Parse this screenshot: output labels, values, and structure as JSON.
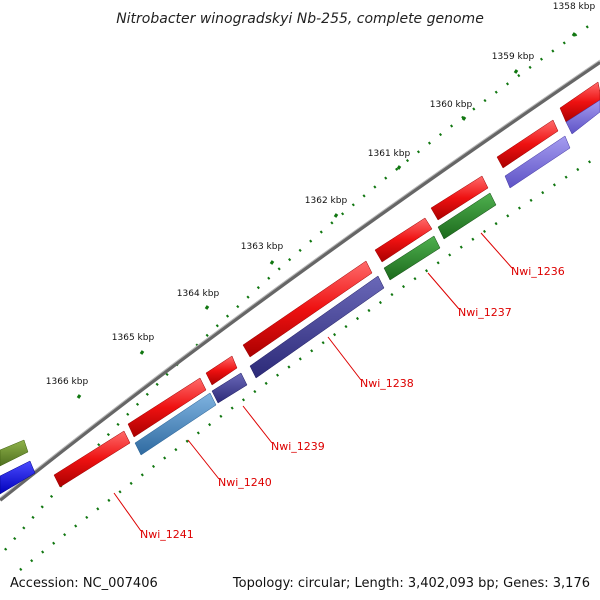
{
  "title": "Nitrobacter winogradskyi Nb-255, complete genome",
  "footer": {
    "accession": "Accession: NC_007406",
    "summary": "Topology: circular; Length: 3,402,093 bp; Genes: 3,176"
  },
  "ticks": [
    {
      "label": "1358 kbp"
    },
    {
      "label": "1359 kbp"
    },
    {
      "label": "1360 kbp"
    },
    {
      "label": "1361 kbp"
    },
    {
      "label": "1362 kbp"
    },
    {
      "label": "1363 kbp"
    },
    {
      "label": "1364 kbp"
    },
    {
      "label": "1365 kbp"
    },
    {
      "label": "1366 kbp"
    }
  ],
  "genes": [
    {
      "id": "gene-nwi-1236",
      "label": "Nwi_1236"
    },
    {
      "id": "gene-nwi-1237",
      "label": "Nwi_1237"
    },
    {
      "id": "gene-nwi-1238",
      "label": "Nwi_1238"
    },
    {
      "id": "gene-nwi-1239",
      "label": "Nwi_1239"
    },
    {
      "id": "gene-nwi-1240",
      "label": "Nwi_1240"
    },
    {
      "id": "gene-nwi-1241",
      "label": "Nwi_1241"
    }
  ],
  "colors": {
    "cds": "#ee1111",
    "backbone": "#777777",
    "tick": "#117711",
    "label": "#dd0000"
  }
}
